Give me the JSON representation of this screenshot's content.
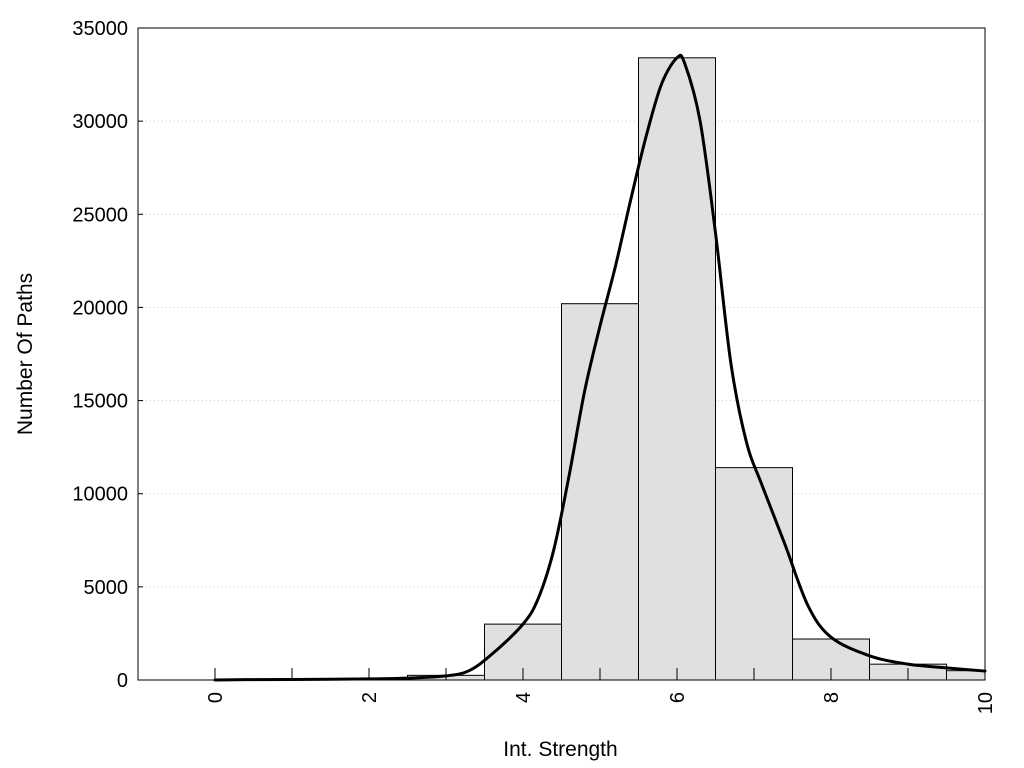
{
  "chart_data": {
    "type": "bar",
    "title": "",
    "xlabel": "Int. Strength",
    "ylabel": "Number Of Paths",
    "xlim": [
      -1,
      10
    ],
    "ylim": [
      0,
      35000
    ],
    "grid": true,
    "x_ticks": [
      0,
      2,
      4,
      6,
      8,
      10
    ],
    "y_ticks": [
      0,
      5000,
      10000,
      15000,
      20000,
      25000,
      30000,
      35000
    ],
    "bin_width": 1,
    "bins": [
      {
        "x": 0,
        "value": 0
      },
      {
        "x": 1,
        "value": 20
      },
      {
        "x": 2,
        "value": 80
      },
      {
        "x": 3,
        "value": 250
      },
      {
        "x": 4,
        "value": 3000
      },
      {
        "x": 5,
        "value": 20200
      },
      {
        "x": 6,
        "value": 33400
      },
      {
        "x": 7,
        "value": 11400
      },
      {
        "x": 8,
        "value": 2200
      },
      {
        "x": 9,
        "value": 850
      },
      {
        "x": 10,
        "value": 500
      }
    ],
    "curve": [
      {
        "x": 0.0,
        "y": 0
      },
      {
        "x": 0.4,
        "y": 20
      },
      {
        "x": 1.0,
        "y": 30
      },
      {
        "x": 2.0,
        "y": 60
      },
      {
        "x": 2.5,
        "y": 100
      },
      {
        "x": 3.0,
        "y": 220
      },
      {
        "x": 3.3,
        "y": 500
      },
      {
        "x": 3.6,
        "y": 1400
      },
      {
        "x": 4.0,
        "y": 3000
      },
      {
        "x": 4.2,
        "y": 4400
      },
      {
        "x": 4.4,
        "y": 7000
      },
      {
        "x": 4.6,
        "y": 11000
      },
      {
        "x": 4.8,
        "y": 15500
      },
      {
        "x": 5.0,
        "y": 19000
      },
      {
        "x": 5.2,
        "y": 22200
      },
      {
        "x": 5.4,
        "y": 25800
      },
      {
        "x": 5.6,
        "y": 29200
      },
      {
        "x": 5.8,
        "y": 32000
      },
      {
        "x": 6.0,
        "y": 33400
      },
      {
        "x": 6.1,
        "y": 33100
      },
      {
        "x": 6.3,
        "y": 30000
      },
      {
        "x": 6.5,
        "y": 24000
      },
      {
        "x": 6.7,
        "y": 17000
      },
      {
        "x": 6.9,
        "y": 12800
      },
      {
        "x": 7.1,
        "y": 10500
      },
      {
        "x": 7.4,
        "y": 7300
      },
      {
        "x": 7.7,
        "y": 4000
      },
      {
        "x": 8.0,
        "y": 2300
      },
      {
        "x": 8.5,
        "y": 1300
      },
      {
        "x": 9.0,
        "y": 850
      },
      {
        "x": 9.5,
        "y": 650
      },
      {
        "x": 10.0,
        "y": 480
      }
    ]
  }
}
